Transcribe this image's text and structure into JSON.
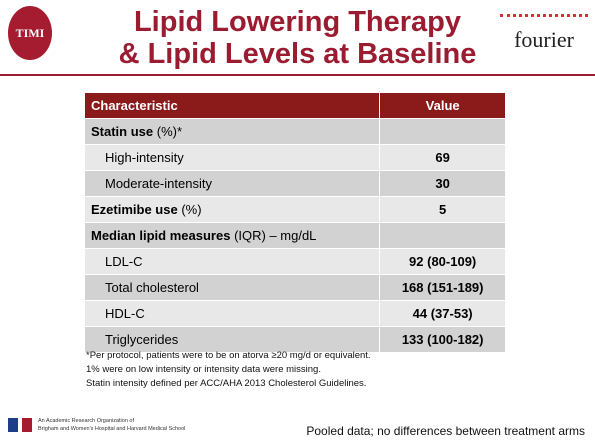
{
  "header": {
    "title_line1": "Lipid Lowering Therapy",
    "title_line2": "& Lipid Levels at Baseline",
    "left_logo": "TIMI",
    "right_logo": "fourier"
  },
  "table": {
    "columns": [
      "Characteristic",
      "Value"
    ],
    "sections": [
      {
        "label": "Statin use",
        "note": "(%)*",
        "items": [
          {
            "label": "High-intensity",
            "value": "69"
          },
          {
            "label": "Moderate-intensity",
            "value": "30"
          }
        ]
      },
      {
        "label": "Ezetimibe use",
        "note": "(%)",
        "value": "5"
      },
      {
        "label": "Median lipid measures",
        "note": "(IQR) – mg/dL",
        "items": [
          {
            "label": "LDL-C",
            "value": "92 (80-109)"
          },
          {
            "label": "Total cholesterol",
            "value": "168 (151-189)"
          },
          {
            "label": "HDL-C",
            "value": "44 (37-53)"
          },
          {
            "label": "Triglycerides",
            "value": "133 (100-182)"
          }
        ]
      }
    ]
  },
  "footnotes": [
    "*Per protocol, patients were to be on atorva ≥20 mg/d or equivalent.",
    "1% were on low intensity or intensity data were missing.",
    "Statin intensity defined per ACC/AHA 2013 Cholesterol Guidelines."
  ],
  "footer": {
    "org_line1": "An Academic Research Organization of",
    "org_line2": "Brigham and Women's Hospital and Harvard Medical School",
    "note": "Pooled data; no differences between treatment arms"
  }
}
